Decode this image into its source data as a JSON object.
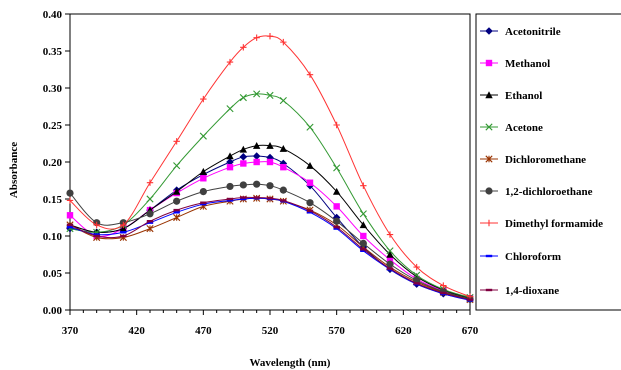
{
  "chart_data": {
    "type": "line",
    "xlabel": "Wavelength (nm)",
    "ylabel": "Absorbance",
    "xlim": [
      370,
      670
    ],
    "ylim": [
      0.0,
      0.4
    ],
    "xticks": [
      370,
      420,
      470,
      520,
      570,
      620,
      670
    ],
    "xtick_labels": [
      "370",
      "420",
      "470",
      "520",
      "570",
      "620",
      "670"
    ],
    "yticks": [
      0.0,
      0.05,
      0.1,
      0.15,
      0.2,
      0.25,
      0.3,
      0.35,
      0.4
    ],
    "ytick_labels": [
      "0.00",
      "0.05",
      "0.10",
      "0.15",
      "0.20",
      "0.25",
      "0.30",
      "0.35",
      "0.40"
    ],
    "grid": false,
    "legend_position": "right",
    "x": [
      370,
      390,
      410,
      430,
      450,
      470,
      490,
      500,
      510,
      520,
      530,
      550,
      570,
      590,
      610,
      630,
      650,
      670
    ],
    "series": [
      {
        "name": "Acetonitrile",
        "color": "#000080",
        "marker": "diamond",
        "values": [
          0.11,
          0.105,
          0.11,
          0.135,
          0.162,
          0.183,
          0.2,
          0.207,
          0.208,
          0.206,
          0.198,
          0.168,
          0.125,
          0.085,
          0.055,
          0.035,
          0.022,
          0.014
        ]
      },
      {
        "name": "Methanol",
        "color": "#ff00ff",
        "marker": "square",
        "values": [
          0.128,
          0.1,
          0.11,
          0.135,
          0.158,
          0.178,
          0.193,
          0.198,
          0.2,
          0.2,
          0.193,
          0.172,
          0.14,
          0.1,
          0.068,
          0.042,
          0.026,
          0.016
        ]
      },
      {
        "name": "Ethanol",
        "color": "#000000",
        "marker": "triangle",
        "values": [
          0.115,
          0.105,
          0.11,
          0.135,
          0.16,
          0.187,
          0.208,
          0.217,
          0.222,
          0.222,
          0.218,
          0.195,
          0.16,
          0.115,
          0.075,
          0.045,
          0.027,
          0.016
        ]
      },
      {
        "name": "Acetone",
        "color": "#339933",
        "marker": "x",
        "values": [
          0.11,
          0.105,
          0.115,
          0.15,
          0.195,
          0.235,
          0.272,
          0.287,
          0.292,
          0.29,
          0.283,
          0.247,
          0.192,
          0.13,
          0.08,
          0.047,
          0.028,
          0.017
        ]
      },
      {
        "name": "Dichloromethane",
        "color": "#993300",
        "marker": "star",
        "values": [
          0.115,
          0.098,
          0.098,
          0.11,
          0.125,
          0.14,
          0.147,
          0.15,
          0.151,
          0.15,
          0.147,
          0.135,
          0.115,
          0.085,
          0.058,
          0.038,
          0.024,
          0.014
        ]
      },
      {
        "name": "1,2-dichloroethane",
        "color": "#404040",
        "marker": "circle",
        "values": [
          0.158,
          0.118,
          0.118,
          0.13,
          0.147,
          0.16,
          0.167,
          0.169,
          0.17,
          0.168,
          0.162,
          0.145,
          0.12,
          0.09,
          0.062,
          0.04,
          0.025,
          0.015
        ]
      },
      {
        "name": "Dimethyl formamide",
        "color": "#ff3333",
        "marker": "plus",
        "values": [
          0.148,
          0.115,
          0.115,
          0.172,
          0.228,
          0.285,
          0.335,
          0.355,
          0.368,
          0.37,
          0.362,
          0.318,
          0.25,
          0.168,
          0.102,
          0.058,
          0.033,
          0.018
        ]
      },
      {
        "name": "Chloroform",
        "color": "#0000ff",
        "marker": "dash",
        "values": [
          0.112,
          0.102,
          0.105,
          0.118,
          0.132,
          0.143,
          0.148,
          0.15,
          0.151,
          0.15,
          0.147,
          0.132,
          0.11,
          0.08,
          0.055,
          0.035,
          0.022,
          0.013
        ]
      },
      {
        "name": "1,4-dioxane",
        "color": "#800040",
        "marker": "dash",
        "values": [
          0.115,
          0.1,
          0.1,
          0.12,
          0.135,
          0.145,
          0.15,
          0.152,
          0.152,
          0.151,
          0.148,
          0.134,
          0.112,
          0.082,
          0.056,
          0.036,
          0.023,
          0.014
        ]
      }
    ]
  }
}
